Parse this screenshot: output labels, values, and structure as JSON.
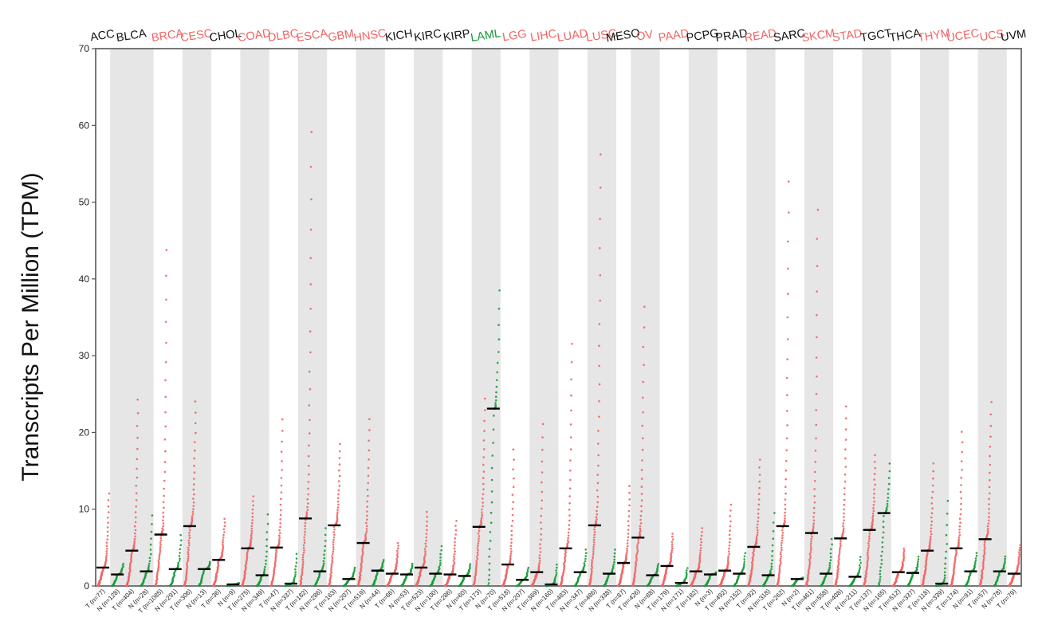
{
  "chart_data": {
    "type": "scatter",
    "title": "",
    "ylabel": "Transcripts Per Million (TPM)",
    "ylim": [
      0,
      70
    ],
    "yticks": [
      0,
      10,
      20,
      30,
      40,
      50,
      60,
      70
    ],
    "grid": false,
    "colors": {
      "tumor": "#f06464",
      "normal": "#1a9a3a",
      "neutral": "#111111",
      "median": "#000000",
      "band": "#e6e6e6",
      "frame": "#777777"
    },
    "cancers": [
      {
        "name": "ACC",
        "label_color": "neutral",
        "groups": [
          {
            "label": "T (n=77)",
            "type": "T",
            "median": 2.4,
            "max": 12.5
          }
        ]
      },
      {
        "name": "BLCA",
        "label_color": "neutral",
        "groups": [
          {
            "label": "N (n=128)",
            "type": "N",
            "median": 1.5,
            "max": 3.0
          },
          {
            "label": "T (n=404)",
            "type": "T",
            "median": 4.6,
            "max": 25.2
          },
          {
            "label": "N (n=28)",
            "type": "N",
            "median": 1.9,
            "max": 9.8
          }
        ]
      },
      {
        "name": "BRCA",
        "label_color": "tumor",
        "groups": [
          {
            "label": "T (n=1085)",
            "type": "T",
            "median": 6.7,
            "max": 45.5
          },
          {
            "label": "N (n=291)",
            "type": "N",
            "median": 2.2,
            "max": 7.0
          }
        ]
      },
      {
        "name": "CESC",
        "label_color": "tumor",
        "groups": [
          {
            "label": "T (n=306)",
            "type": "T",
            "median": 7.8,
            "max": 24.8
          },
          {
            "label": "N (n=13)",
            "type": "N",
            "median": 2.2,
            "max": 3.2
          }
        ]
      },
      {
        "name": "CHOL",
        "label_color": "neutral",
        "groups": [
          {
            "label": "T (n=36)",
            "type": "T",
            "median": 3.4,
            "max": 9.0
          },
          {
            "label": "N (n=9)",
            "type": "N",
            "median": 0.2,
            "max": 0.4
          }
        ]
      },
      {
        "name": "COAD",
        "label_color": "tumor",
        "groups": [
          {
            "label": "T (n=275)",
            "type": "T",
            "median": 4.9,
            "max": 12.0
          },
          {
            "label": "N (n=349)",
            "type": "N",
            "median": 1.4,
            "max": 10.0
          }
        ]
      },
      {
        "name": "DLBC",
        "label_color": "tumor",
        "groups": [
          {
            "label": "T (n=47)",
            "type": "T",
            "median": 5.0,
            "max": 22.5
          },
          {
            "label": "N (n=337)",
            "type": "N",
            "median": 0.3,
            "max": 4.5
          }
        ]
      },
      {
        "name": "ESCA",
        "label_color": "tumor",
        "groups": [
          {
            "label": "T (n=182)",
            "type": "T",
            "median": 8.8,
            "max": 61.5
          },
          {
            "label": "N (n=286)",
            "type": "N",
            "median": 1.9,
            "max": 8.0
          }
        ]
      },
      {
        "name": "GBM",
        "label_color": "tumor",
        "groups": [
          {
            "label": "T (n=163)",
            "type": "T",
            "median": 7.9,
            "max": 19.0
          },
          {
            "label": "N (n=207)",
            "type": "N",
            "median": 0.9,
            "max": 2.5
          }
        ]
      },
      {
        "name": "HNSC",
        "label_color": "tumor",
        "groups": [
          {
            "label": "T (n=519)",
            "type": "T",
            "median": 5.6,
            "max": 22.5
          },
          {
            "label": "N (n=44)",
            "type": "N",
            "median": 2.0,
            "max": 3.5
          }
        ]
      },
      {
        "name": "KICH",
        "label_color": "neutral",
        "groups": [
          {
            "label": "T (n=66)",
            "type": "T",
            "median": 1.6,
            "max": 5.8
          },
          {
            "label": "N (n=53)",
            "type": "N",
            "median": 1.5,
            "max": 3.0
          }
        ]
      },
      {
        "name": "KIRC",
        "label_color": "neutral",
        "groups": [
          {
            "label": "T (n=523)",
            "type": "T",
            "median": 2.4,
            "max": 10.0
          },
          {
            "label": "N (n=100)",
            "type": "N",
            "median": 1.6,
            "max": 5.5
          }
        ]
      },
      {
        "name": "KIRP",
        "label_color": "neutral",
        "groups": [
          {
            "label": "T (n=286)",
            "type": "T",
            "median": 1.5,
            "max": 8.8
          },
          {
            "label": "N (n=60)",
            "type": "N",
            "median": 1.3,
            "max": 3.0
          }
        ]
      },
      {
        "name": "LAML",
        "label_color": "normal",
        "groups": [
          {
            "label": "T (n=173)",
            "type": "T",
            "median": 7.7,
            "max": 25.2
          },
          {
            "label": "N (n=70)",
            "type": "N",
            "median": 23.1,
            "max": 39.8
          }
        ]
      },
      {
        "name": "LGG",
        "label_color": "tumor",
        "groups": [
          {
            "label": "T (n=518)",
            "type": "T",
            "median": 2.8,
            "max": 18.5
          },
          {
            "label": "N (n=207)",
            "type": "N",
            "median": 0.8,
            "max": 2.5
          }
        ]
      },
      {
        "name": "LIHC",
        "label_color": "tumor",
        "groups": [
          {
            "label": "T (n=369)",
            "type": "T",
            "median": 1.8,
            "max": 22.0
          },
          {
            "label": "N (n=160)",
            "type": "N",
            "median": 0.2,
            "max": 3.0
          }
        ]
      },
      {
        "name": "LUAD",
        "label_color": "tumor",
        "groups": [
          {
            "label": "T (n=483)",
            "type": "T",
            "median": 4.9,
            "max": 32.8
          },
          {
            "label": "N (n=347)",
            "type": "N",
            "median": 1.8,
            "max": 5.0
          }
        ]
      },
      {
        "name": "LUSC",
        "label_color": "tumor",
        "groups": [
          {
            "label": "T (n=486)",
            "type": "T",
            "median": 7.9,
            "max": 58.5
          },
          {
            "label": "N (n=338)",
            "type": "N",
            "median": 1.6,
            "max": 5.0
          }
        ]
      },
      {
        "name": "MESO",
        "label_color": "neutral",
        "groups": [
          {
            "label": "T (n=87)",
            "type": "T",
            "median": 3.0,
            "max": 13.5
          }
        ]
      },
      {
        "name": "OV",
        "label_color": "tumor",
        "groups": [
          {
            "label": "T (n=426)",
            "type": "T",
            "median": 6.3,
            "max": 37.8
          },
          {
            "label": "N (n=88)",
            "type": "N",
            "median": 1.4,
            "max": 3.0
          }
        ]
      },
      {
        "name": "PAAD",
        "label_color": "tumor",
        "groups": [
          {
            "label": "T (n=179)",
            "type": "T",
            "median": 2.6,
            "max": 7.0
          },
          {
            "label": "N (n=171)",
            "type": "N",
            "median": 0.4,
            "max": 2.5
          }
        ]
      },
      {
        "name": "PCPG",
        "label_color": "neutral",
        "groups": [
          {
            "label": "T (n=182)",
            "type": "T",
            "median": 1.9,
            "max": 7.8
          },
          {
            "label": "N (n=3)",
            "type": "N",
            "median": 1.5,
            "max": 1.8
          }
        ]
      },
      {
        "name": "PRAD",
        "label_color": "neutral",
        "groups": [
          {
            "label": "T (n=492)",
            "type": "T",
            "median": 2.0,
            "max": 11.0
          },
          {
            "label": "N (n=152)",
            "type": "N",
            "median": 1.6,
            "max": 4.5
          }
        ]
      },
      {
        "name": "READ",
        "label_color": "tumor",
        "groups": [
          {
            "label": "T (n=92)",
            "type": "T",
            "median": 5.1,
            "max": 17.0
          },
          {
            "label": "N (n=318)",
            "type": "N",
            "median": 1.4,
            "max": 10.2
          }
        ]
      },
      {
        "name": "SARC",
        "label_color": "neutral",
        "groups": [
          {
            "label": "T (n=262)",
            "type": "T",
            "median": 7.8,
            "max": 54.8
          },
          {
            "label": "N (n=2)",
            "type": "N",
            "median": 0.9,
            "max": 1.1
          }
        ]
      },
      {
        "name": "SKCM",
        "label_color": "tumor",
        "groups": [
          {
            "label": "T (n=461)",
            "type": "T",
            "median": 6.9,
            "max": 51.0
          },
          {
            "label": "N (n=558)",
            "type": "N",
            "median": 1.6,
            "max": 6.5
          }
        ]
      },
      {
        "name": "STAD",
        "label_color": "tumor",
        "groups": [
          {
            "label": "T (n=408)",
            "type": "T",
            "median": 6.2,
            "max": 24.2
          },
          {
            "label": "N (n=211)",
            "type": "N",
            "median": 1.2,
            "max": 4.0
          }
        ]
      },
      {
        "name": "TGCT",
        "label_color": "neutral",
        "groups": [
          {
            "label": "T (n=137)",
            "type": "T",
            "median": 7.3,
            "max": 17.5
          },
          {
            "label": "N (n=165)",
            "type": "N",
            "median": 9.5,
            "max": 16.5
          }
        ]
      },
      {
        "name": "THCA",
        "label_color": "neutral",
        "groups": [
          {
            "label": "T (n=512)",
            "type": "T",
            "median": 1.8,
            "max": 5.0
          },
          {
            "label": "N (n=337)",
            "type": "N",
            "median": 1.7,
            "max": 4.0
          }
        ]
      },
      {
        "name": "THYM",
        "label_color": "tumor",
        "groups": [
          {
            "label": "T (n=118)",
            "type": "T",
            "median": 4.6,
            "max": 16.5
          },
          {
            "label": "N (n=339)",
            "type": "N",
            "median": 0.3,
            "max": 12.0
          }
        ]
      },
      {
        "name": "UCEC",
        "label_color": "tumor",
        "groups": [
          {
            "label": "T (n=174)",
            "type": "T",
            "median": 4.9,
            "max": 20.8
          },
          {
            "label": "N (n=91)",
            "type": "N",
            "median": 1.9,
            "max": 4.5
          }
        ]
      },
      {
        "name": "UCS",
        "label_color": "tumor",
        "groups": [
          {
            "label": "T (n=57)",
            "type": "T",
            "median": 6.1,
            "max": 24.8
          },
          {
            "label": "N (n=78)",
            "type": "N",
            "median": 1.9,
            "max": 4.0
          }
        ]
      },
      {
        "name": "UVM",
        "label_color": "neutral",
        "groups": [
          {
            "label": "T (n=79)",
            "type": "T",
            "median": 1.6,
            "max": 5.5
          }
        ]
      }
    ]
  }
}
